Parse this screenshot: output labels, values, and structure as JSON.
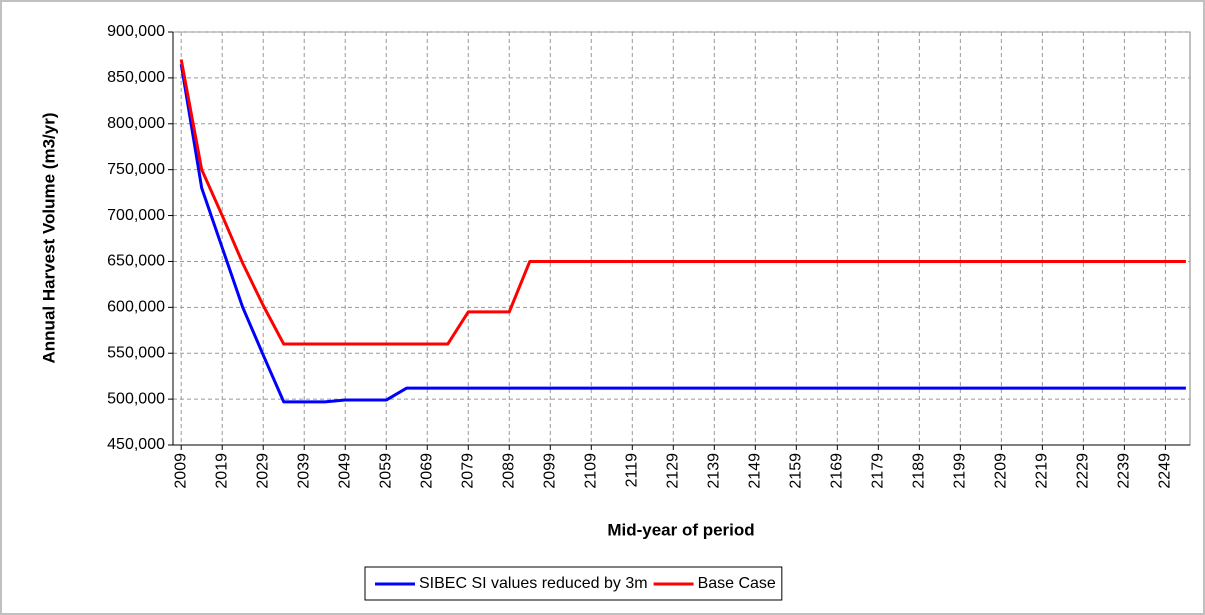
{
  "chart_data": {
    "type": "line",
    "y_label": "Annual Harvest Volume (m3/yr)",
    "x_label": "Mid-year of period",
    "x": [
      2009,
      2014,
      2019,
      2024,
      2029,
      2034,
      2039,
      2044,
      2049,
      2054,
      2059,
      2064,
      2069,
      2074,
      2079,
      2084,
      2089,
      2094,
      2099,
      2104,
      2109,
      2114,
      2119,
      2124,
      2129,
      2134,
      2139,
      2144,
      2149,
      2154,
      2159,
      2164,
      2169,
      2174,
      2179,
      2184,
      2189,
      2194,
      2199,
      2204,
      2209,
      2214,
      2219,
      2224,
      2229,
      2234,
      2239,
      2244,
      2249,
      2254
    ],
    "series": [
      {
        "name": "SIBEC SI values reduced by 3m",
        "color": "#0000ff",
        "values": [
          865000,
          730000,
          665000,
          600000,
          548000,
          497000,
          497000,
          497000,
          499000,
          499000,
          499000,
          512000,
          512000,
          512000,
          512000,
          512000,
          512000,
          512000,
          512000,
          512000,
          512000,
          512000,
          512000,
          512000,
          512000,
          512000,
          512000,
          512000,
          512000,
          512000,
          512000,
          512000,
          512000,
          512000,
          512000,
          512000,
          512000,
          512000,
          512000,
          512000,
          512000,
          512000,
          512000,
          512000,
          512000,
          512000,
          512000,
          512000,
          512000,
          512000
        ]
      },
      {
        "name": "Base Case",
        "color": "#ff0000",
        "values": [
          870000,
          750000,
          700000,
          648000,
          602000,
          560000,
          560000,
          560000,
          560000,
          560000,
          560000,
          560000,
          560000,
          560000,
          595000,
          595000,
          595000,
          650000,
          650000,
          650000,
          650000,
          650000,
          650000,
          650000,
          650000,
          650000,
          650000,
          650000,
          650000,
          650000,
          650000,
          650000,
          650000,
          650000,
          650000,
          650000,
          650000,
          650000,
          650000,
          650000,
          650000,
          650000,
          650000,
          650000,
          650000,
          650000,
          650000,
          650000,
          650000,
          650000
        ]
      }
    ],
    "xlim": [
      2007,
      2255
    ],
    "xticks": [
      2009,
      2019,
      2029,
      2039,
      2049,
      2059,
      2069,
      2079,
      2089,
      2099,
      2109,
      2119,
      2129,
      2139,
      2149,
      2159,
      2169,
      2179,
      2189,
      2199,
      2209,
      2219,
      2229,
      2239,
      2249
    ],
    "ylim": [
      450000,
      900000
    ],
    "yticks": [
      {
        "value": 450000,
        "label": "450,000"
      },
      {
        "value": 500000,
        "label": "500,000"
      },
      {
        "value": 550000,
        "label": "550,000"
      },
      {
        "value": 600000,
        "label": "600,000"
      },
      {
        "value": 650000,
        "label": "650,000"
      },
      {
        "value": 700000,
        "label": "700,000"
      },
      {
        "value": 750000,
        "label": "750,000"
      },
      {
        "value": 800000,
        "label": "800,000"
      },
      {
        "value": 850000,
        "label": "850,000"
      },
      {
        "value": 900000,
        "label": "900,000"
      }
    ],
    "grid": true,
    "legend": "bottom"
  }
}
